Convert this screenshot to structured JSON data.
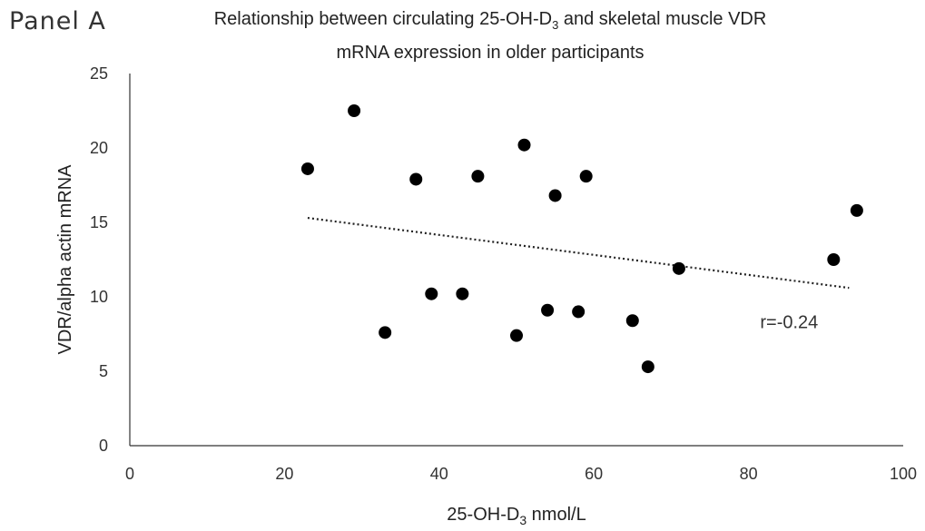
{
  "panel_label": "Panel A",
  "chart_data": {
    "type": "scatter",
    "title_line1": "Relationship between circulating 25-OH-D",
    "title_sub": "3",
    "title_line1_end": " and skeletal muscle VDR",
    "title_line2": "mRNA expression in older participants",
    "xlabel_main": "25-OH-D",
    "xlabel_sub": "3",
    "xlabel_end": " nmol/L",
    "ylabel": "VDR/alpha actin  mRNA",
    "xlim": [
      0,
      100
    ],
    "ylim": [
      0,
      25
    ],
    "x_ticks": [
      "0",
      "20",
      "40",
      "60",
      "80",
      "100"
    ],
    "y_ticks": [
      "0",
      "5",
      "10",
      "15",
      "20",
      "25"
    ],
    "grid": false,
    "points": [
      {
        "x": 23,
        "y": 18.6
      },
      {
        "x": 29,
        "y": 22.5
      },
      {
        "x": 33,
        "y": 7.6
      },
      {
        "x": 37,
        "y": 17.9
      },
      {
        "x": 39,
        "y": 10.2
      },
      {
        "x": 43,
        "y": 10.2
      },
      {
        "x": 45,
        "y": 18.1
      },
      {
        "x": 50,
        "y": 7.4
      },
      {
        "x": 51,
        "y": 20.2
      },
      {
        "x": 54,
        "y": 9.1
      },
      {
        "x": 55,
        "y": 16.8
      },
      {
        "x": 58,
        "y": 9.0
      },
      {
        "x": 59,
        "y": 18.1
      },
      {
        "x": 65,
        "y": 8.4
      },
      {
        "x": 67,
        "y": 5.3
      },
      {
        "x": 71,
        "y": 11.9
      },
      {
        "x": 91,
        "y": 12.5
      },
      {
        "x": 94,
        "y": 15.8
      }
    ],
    "trendline": {
      "style": "dotted",
      "x": [
        23,
        93
      ],
      "y": [
        15.3,
        10.6
      ]
    },
    "annotation": "r=-0.24",
    "point_color": "#000000"
  }
}
